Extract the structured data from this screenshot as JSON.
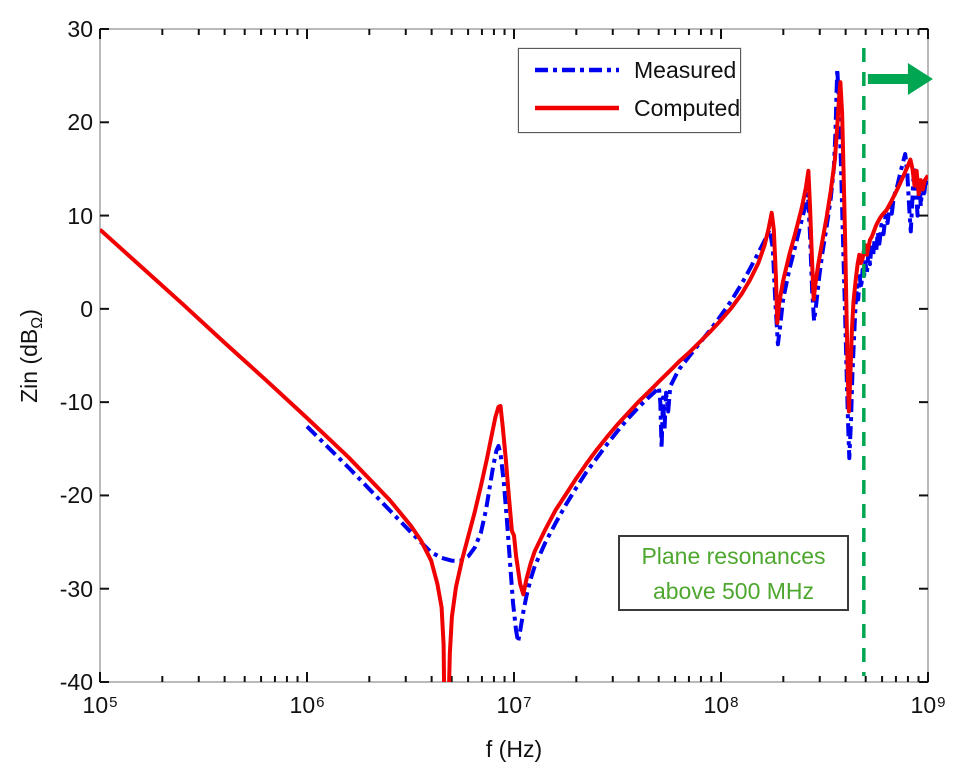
{
  "axis": {
    "x_label": "f (Hz)",
    "y_label_pre": "Zin (dB",
    "y_label_sub": "Ω",
    "y_label_post": ")",
    "x_tick_base": "10",
    "x_tick_exponents": [
      5,
      6,
      7,
      8,
      9
    ],
    "y_tick_values": [
      30,
      20,
      10,
      0,
      -10,
      -20,
      -30,
      -40
    ],
    "frame_color": "#a8a8a8",
    "tick_color": "#111111"
  },
  "legend": {
    "items": [
      {
        "label": "Measured",
        "color": "#0000f0",
        "style": "dash-dot"
      },
      {
        "label": "Computed",
        "color": "#f00000",
        "style": "solid"
      }
    ]
  },
  "annotation": {
    "line1": "Plane resonances",
    "line2": "above 500 MHz",
    "text_color": "#4EA72E",
    "border_color": "#3a3a3a"
  },
  "overlay": {
    "cutoff_line": {
      "logf": 8.69,
      "frequency_label": "500 MHz",
      "color": "#00A651",
      "style": "dashed"
    },
    "arrow": {
      "color": "#00A651",
      "direction": "right",
      "at_db": 24,
      "from_logf": 8.7
    }
  },
  "chart_data": {
    "type": "line",
    "title": "",
    "xlabel": "f (Hz)",
    "ylabel": "Zin (dBΩ)",
    "x_scale": "log",
    "xlim_hz": [
      100000,
      1000000000
    ],
    "ylim_db": [
      -40,
      30
    ],
    "grid": false,
    "legend_position": "top-center",
    "note": "series points are [log10(f in Hz), Zin in dB-ohm]; Computed dips below -40 (clipped) near log f = 6.67",
    "series": [
      {
        "name": "Measured",
        "color": "#0000f0",
        "line_style": "dash-dot",
        "points": [
          [
            6.0,
            -12.6
          ],
          [
            6.1,
            -14.8
          ],
          [
            6.2,
            -17.0
          ],
          [
            6.3,
            -19.3
          ],
          [
            6.4,
            -21.6
          ],
          [
            6.5,
            -23.9
          ],
          [
            6.55,
            -25.0
          ],
          [
            6.6,
            -26.1
          ],
          [
            6.65,
            -26.7
          ],
          [
            6.7,
            -27.0
          ],
          [
            6.74,
            -27.0
          ],
          [
            6.78,
            -26.5
          ],
          [
            6.81,
            -25.6
          ],
          [
            6.84,
            -24.0
          ],
          [
            6.865,
            -21.5
          ],
          [
            6.885,
            -18.8
          ],
          [
            6.9,
            -16.8
          ],
          [
            6.915,
            -15.2
          ],
          [
            6.925,
            -14.7
          ],
          [
            6.935,
            -15.5
          ],
          [
            6.95,
            -18.5
          ],
          [
            6.965,
            -22.5
          ],
          [
            6.98,
            -27.0
          ],
          [
            6.995,
            -31.5
          ],
          [
            7.01,
            -34.5
          ],
          [
            7.02,
            -35.7
          ],
          [
            7.03,
            -34.5
          ],
          [
            7.045,
            -32.5
          ],
          [
            7.06,
            -30.8
          ],
          [
            7.08,
            -29.0
          ],
          [
            7.1,
            -27.6
          ],
          [
            7.15,
            -25.1
          ],
          [
            7.2,
            -23.0
          ],
          [
            7.25,
            -21.0
          ],
          [
            7.3,
            -19.2
          ],
          [
            7.35,
            -17.5
          ],
          [
            7.4,
            -16.0
          ],
          [
            7.45,
            -14.5
          ],
          [
            7.5,
            -13.1
          ],
          [
            7.55,
            -11.8
          ],
          [
            7.6,
            -10.6
          ],
          [
            7.65,
            -9.5
          ],
          [
            7.68,
            -8.9
          ],
          [
            7.7,
            -8.4
          ],
          [
            7.707,
            -10.0
          ],
          [
            7.713,
            -14.9
          ],
          [
            7.72,
            -9.5
          ],
          [
            7.727,
            -13.0
          ],
          [
            7.735,
            -9.0
          ],
          [
            7.745,
            -11.0
          ],
          [
            7.755,
            -8.3
          ],
          [
            7.78,
            -7.2
          ],
          [
            7.8,
            -6.4
          ],
          [
            7.85,
            -5.0
          ],
          [
            7.9,
            -3.6
          ],
          [
            7.95,
            -2.2
          ],
          [
            8.0,
            -0.7
          ],
          [
            8.05,
            0.9
          ],
          [
            8.1,
            2.7
          ],
          [
            8.14,
            4.3
          ],
          [
            8.18,
            6.0
          ],
          [
            8.21,
            7.3
          ],
          [
            8.235,
            8.5
          ],
          [
            8.25,
            6.5
          ],
          [
            8.262,
            1.0
          ],
          [
            8.275,
            -3.8
          ],
          [
            8.285,
            -2.0
          ],
          [
            8.3,
            1.0
          ],
          [
            8.33,
            4.2
          ],
          [
            8.36,
            6.8
          ],
          [
            8.39,
            9.5
          ],
          [
            8.41,
            11.3
          ],
          [
            8.42,
            12.3
          ],
          [
            8.43,
            8.0
          ],
          [
            8.44,
            2.0
          ],
          [
            8.45,
            -1.3
          ],
          [
            8.46,
            0.5
          ],
          [
            8.475,
            3.5
          ],
          [
            8.49,
            6.0
          ],
          [
            8.51,
            8.8
          ],
          [
            8.53,
            11.8
          ],
          [
            8.545,
            15.0
          ],
          [
            8.553,
            19.0
          ],
          [
            8.558,
            23.0
          ],
          [
            8.562,
            25.7
          ],
          [
            8.57,
            22.0
          ],
          [
            8.58,
            15.0
          ],
          [
            8.59,
            7.0
          ],
          [
            8.6,
            -1.0
          ],
          [
            8.608,
            -8.0
          ],
          [
            8.615,
            -13.0
          ],
          [
            8.62,
            -16.0
          ],
          [
            8.628,
            -12.0
          ],
          [
            8.635,
            -7.0
          ],
          [
            8.643,
            -3.0
          ],
          [
            8.65,
            0.5
          ],
          [
            8.657,
            2.5
          ],
          [
            8.663,
            1.0
          ],
          [
            8.67,
            3.5
          ],
          [
            8.677,
            2.2
          ],
          [
            8.684,
            4.2
          ],
          [
            8.69,
            3.2
          ],
          [
            8.697,
            5.0
          ],
          [
            8.705,
            3.8
          ],
          [
            8.712,
            6.0
          ],
          [
            8.72,
            4.8
          ],
          [
            8.727,
            6.8
          ],
          [
            8.735,
            5.6
          ],
          [
            8.742,
            7.5
          ],
          [
            8.75,
            6.3
          ],
          [
            8.757,
            8.2
          ],
          [
            8.765,
            7.0
          ],
          [
            8.775,
            9.0
          ],
          [
            8.785,
            8.0
          ],
          [
            8.795,
            10.0
          ],
          [
            8.805,
            9.2
          ],
          [
            8.815,
            11.0
          ],
          [
            8.825,
            10.2
          ],
          [
            8.835,
            12.0
          ],
          [
            8.85,
            13.0
          ],
          [
            8.865,
            14.5
          ],
          [
            8.88,
            15.8
          ],
          [
            8.89,
            16.6
          ],
          [
            8.9,
            14.5
          ],
          [
            8.91,
            10.5
          ],
          [
            8.917,
            8.3
          ],
          [
            8.925,
            12.0
          ],
          [
            8.933,
            15.3
          ],
          [
            8.94,
            13.0
          ],
          [
            8.95,
            10.0
          ],
          [
            8.958,
            13.5
          ],
          [
            8.965,
            11.0
          ],
          [
            8.973,
            13.5
          ],
          [
            8.98,
            12.0
          ],
          [
            8.99,
            14.0
          ],
          [
            9.0,
            13.2
          ]
        ]
      },
      {
        "name": "Computed",
        "color": "#f00000",
        "line_style": "solid",
        "points": [
          [
            5.0,
            8.5
          ],
          [
            5.2,
            4.5
          ],
          [
            5.4,
            0.5
          ],
          [
            5.6,
            -3.6
          ],
          [
            5.8,
            -7.6
          ],
          [
            6.0,
            -11.7
          ],
          [
            6.1,
            -13.8
          ],
          [
            6.2,
            -15.9
          ],
          [
            6.3,
            -18.2
          ],
          [
            6.4,
            -20.5
          ],
          [
            6.5,
            -23.2
          ],
          [
            6.55,
            -24.8
          ],
          [
            6.6,
            -27.0
          ],
          [
            6.63,
            -29.5
          ],
          [
            6.65,
            -32.0
          ],
          [
            6.66,
            -36.0
          ],
          [
            6.665,
            -46.0
          ],
          [
            6.68,
            -46.0
          ],
          [
            6.69,
            -37.0
          ],
          [
            6.7,
            -33.0
          ],
          [
            6.72,
            -29.8
          ],
          [
            6.75,
            -26.8
          ],
          [
            6.78,
            -24.3
          ],
          [
            6.81,
            -21.8
          ],
          [
            6.84,
            -19.0
          ],
          [
            6.87,
            -16.0
          ],
          [
            6.89,
            -13.8
          ],
          [
            6.91,
            -11.6
          ],
          [
            6.925,
            -10.5
          ],
          [
            6.935,
            -10.4
          ],
          [
            6.945,
            -12.5
          ],
          [
            6.96,
            -16.0
          ],
          [
            6.975,
            -20.0
          ],
          [
            6.99,
            -23.8
          ],
          [
            7.0,
            -24.3
          ],
          [
            7.01,
            -26.5
          ],
          [
            7.03,
            -29.5
          ],
          [
            7.045,
            -30.6
          ],
          [
            7.06,
            -29.0
          ],
          [
            7.08,
            -27.3
          ],
          [
            7.1,
            -26.0
          ],
          [
            7.15,
            -23.7
          ],
          [
            7.2,
            -21.6
          ],
          [
            7.25,
            -19.9
          ],
          [
            7.3,
            -18.2
          ],
          [
            7.35,
            -16.6
          ],
          [
            7.4,
            -15.1
          ],
          [
            7.45,
            -13.7
          ],
          [
            7.5,
            -12.4
          ],
          [
            7.55,
            -11.2
          ],
          [
            7.6,
            -10.0
          ],
          [
            7.65,
            -8.9
          ],
          [
            7.7,
            -7.8
          ],
          [
            7.75,
            -6.7
          ],
          [
            7.8,
            -5.6
          ],
          [
            7.85,
            -4.6
          ],
          [
            7.9,
            -3.5
          ],
          [
            7.95,
            -2.4
          ],
          [
            8.0,
            -1.2
          ],
          [
            8.05,
            0.1
          ],
          [
            8.1,
            1.6
          ],
          [
            8.14,
            3.1
          ],
          [
            8.18,
            4.9
          ],
          [
            8.21,
            6.8
          ],
          [
            8.23,
            8.6
          ],
          [
            8.245,
            10.3
          ],
          [
            8.255,
            8.5
          ],
          [
            8.265,
            3.5
          ],
          [
            8.272,
            -1.5
          ],
          [
            8.28,
            0.5
          ],
          [
            8.3,
            3.0
          ],
          [
            8.33,
            5.8
          ],
          [
            8.36,
            8.2
          ],
          [
            8.39,
            10.8
          ],
          [
            8.41,
            13.0
          ],
          [
            8.422,
            14.8
          ],
          [
            8.43,
            11.0
          ],
          [
            8.44,
            5.0
          ],
          [
            8.448,
            1.0
          ],
          [
            8.455,
            2.5
          ],
          [
            8.47,
            4.8
          ],
          [
            8.49,
            7.3
          ],
          [
            8.51,
            9.8
          ],
          [
            8.53,
            12.6
          ],
          [
            8.55,
            16.0
          ],
          [
            8.56,
            19.0
          ],
          [
            8.57,
            22.5
          ],
          [
            8.577,
            24.3
          ],
          [
            8.585,
            21.0
          ],
          [
            8.592,
            15.0
          ],
          [
            8.6,
            7.0
          ],
          [
            8.607,
            -1.0
          ],
          [
            8.613,
            -7.5
          ],
          [
            8.618,
            -11.0
          ],
          [
            8.625,
            -7.0
          ],
          [
            8.632,
            -2.5
          ],
          [
            8.64,
            0.8
          ],
          [
            8.65,
            3.0
          ],
          [
            8.66,
            4.8
          ],
          [
            8.668,
            5.8
          ],
          [
            8.676,
            4.9
          ],
          [
            8.684,
            5.4
          ],
          [
            8.69,
            6.2
          ],
          [
            8.7,
            6.8
          ],
          [
            8.705,
            5.8
          ],
          [
            8.712,
            6.6
          ],
          [
            8.72,
            7.4
          ],
          [
            8.73,
            7.8
          ],
          [
            8.74,
            8.4
          ],
          [
            8.75,
            9.0
          ],
          [
            8.76,
            9.4
          ],
          [
            8.77,
            9.8
          ],
          [
            8.78,
            10.1
          ],
          [
            8.8,
            10.6
          ],
          [
            8.82,
            11.4
          ],
          [
            8.84,
            12.3
          ],
          [
            8.86,
            13.2
          ],
          [
            8.88,
            14.2
          ],
          [
            8.9,
            15.2
          ],
          [
            8.915,
            16.0
          ],
          [
            8.925,
            15.0
          ],
          [
            8.935,
            13.2
          ],
          [
            8.945,
            14.8
          ],
          [
            8.955,
            12.3
          ],
          [
            8.965,
            13.8
          ],
          [
            8.975,
            12.8
          ],
          [
            8.985,
            13.8
          ],
          [
            9.0,
            14.3
          ]
        ]
      }
    ]
  }
}
